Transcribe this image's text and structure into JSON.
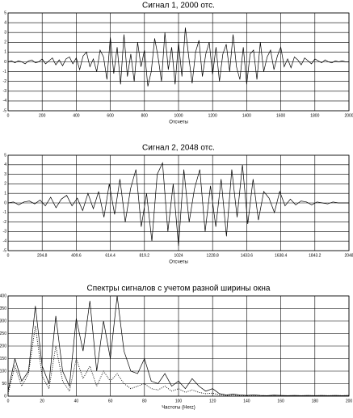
{
  "chart_data": [
    {
      "type": "line",
      "title": "Сигнал 1, 2000 отс.",
      "x_label": "Отсчеты",
      "xlim": [
        0,
        2000
      ],
      "ylim": [
        -5,
        5
      ],
      "xticks": [
        0,
        200,
        400,
        600,
        800,
        1000,
        1200,
        1400,
        1600,
        1800,
        2000
      ],
      "yticks": [
        5,
        4,
        3,
        2,
        1,
        0,
        -1,
        -2,
        -3,
        -4,
        -5
      ],
      "grid": true,
      "x": [
        0,
        20,
        40,
        60,
        80,
        100,
        120,
        140,
        160,
        180,
        200,
        220,
        240,
        260,
        280,
        300,
        320,
        340,
        360,
        380,
        400,
        420,
        440,
        460,
        480,
        500,
        520,
        540,
        560,
        580,
        600,
        620,
        640,
        660,
        680,
        700,
        720,
        740,
        760,
        780,
        800,
        820,
        840,
        860,
        880,
        900,
        920,
        940,
        960,
        980,
        1000,
        1020,
        1040,
        1060,
        1080,
        1100,
        1120,
        1140,
        1160,
        1180,
        1200,
        1220,
        1240,
        1260,
        1280,
        1300,
        1320,
        1340,
        1360,
        1380,
        1400,
        1420,
        1440,
        1460,
        1480,
        1500,
        1520,
        1540,
        1560,
        1580,
        1600,
        1620,
        1640,
        1660,
        1680,
        1700,
        1720,
        1740,
        1760,
        1780,
        1800,
        1820,
        1840,
        1860,
        1880,
        1900,
        1920,
        1940,
        1960,
        1980,
        2000
      ],
      "series": [
        {
          "color": "#000000",
          "line_style": "solid",
          "values": [
            0,
            0.1,
            -0.1,
            0.1,
            0,
            -0.2,
            0.1,
            0.2,
            -0.1,
            0,
            0.3,
            -0.2,
            0.1,
            0.4,
            -0.3,
            0.2,
            -0.4,
            0.3,
            0.5,
            -0.2,
            0.4,
            -0.8,
            0.6,
            1.0,
            -0.5,
            0.3,
            -1.0,
            1.2,
            0.5,
            -1.8,
            2.5,
            -1.2,
            1.5,
            -2.3,
            2.8,
            -1.5,
            0.8,
            -2.0,
            2.0,
            -0.5,
            1.2,
            -2.5,
            -1.0,
            2.4,
            0.5,
            -2.0,
            3.0,
            -0.8,
            1.5,
            -2.3,
            2.0,
            -1.5,
            3.5,
            0.5,
            -2.2,
            1.0,
            2.2,
            -1.5,
            0.8,
            2.0,
            -1.3,
            1.5,
            -2.0,
            0.8,
            1.8,
            -1.0,
            2.8,
            -0.5,
            -1.8,
            1.5,
            -2.3,
            0.8,
            1.2,
            -1.8,
            2.0,
            -1.0,
            0.5,
            1.2,
            -0.8,
            0.6,
            1.5,
            -0.5,
            0.3,
            -0.6,
            0.5,
            0.2,
            -0.3,
            0.4,
            0.1,
            -0.2,
            0.3,
            0.1,
            -0.1,
            0.2,
            0,
            -0.1,
            0.1,
            0,
            0.1,
            0,
            0
          ]
        }
      ]
    },
    {
      "type": "line",
      "title": "Сигнал 2, 2048 отс.",
      "x_label": "Отсчеты",
      "xlim": [
        0,
        2048
      ],
      "ylim": [
        -5,
        5
      ],
      "xticks": [
        0,
        204.8,
        409.6,
        614.4,
        819.2,
        1024,
        1228.8,
        1433.6,
        1638.4,
        1843.2,
        2048
      ],
      "yticks": [
        5,
        4,
        3,
        2,
        1,
        0,
        -1,
        -2,
        -3,
        -4,
        -5
      ],
      "grid": true,
      "x": [
        0,
        32,
        64,
        96,
        128,
        160,
        192,
        224,
        256,
        288,
        320,
        352,
        384,
        416,
        448,
        480,
        512,
        544,
        576,
        608,
        640,
        672,
        704,
        736,
        768,
        800,
        832,
        864,
        896,
        928,
        960,
        992,
        1024,
        1056,
        1088,
        1120,
        1152,
        1184,
        1216,
        1248,
        1280,
        1312,
        1344,
        1376,
        1408,
        1440,
        1472,
        1504,
        1536,
        1568,
        1600,
        1632,
        1664,
        1696,
        1728,
        1760,
        1792,
        1824,
        1856,
        1888,
        1920,
        1952,
        1984,
        2016,
        2048
      ],
      "series": [
        {
          "color": "#000000",
          "line_style": "solid",
          "values": [
            0,
            0.1,
            -0.2,
            0.1,
            0.2,
            -0.1,
            0.3,
            -0.3,
            0.6,
            -0.5,
            0.4,
            0.8,
            -0.3,
            0.5,
            -0.8,
            1.0,
            -0.6,
            1.2,
            -1.5,
            2.0,
            -1.2,
            2.5,
            -2.0,
            1.5,
            3.5,
            -2.5,
            1.0,
            -4.0,
            3.0,
            4.2,
            -3.0,
            2.0,
            -4.5,
            3.5,
            -2.0,
            1.5,
            3.5,
            -3.0,
            1.8,
            -2.5,
            2.5,
            -3.5,
            3.5,
            -1.5,
            4.0,
            -2.2,
            2.5,
            -1.8,
            1.2,
            0.5,
            -1.0,
            1.2,
            -0.3,
            0.4,
            -0.2,
            0.2,
            0.1,
            -0.2,
            0.1,
            0,
            -0.1,
            0.1,
            0,
            0,
            0
          ]
        }
      ]
    },
    {
      "type": "line",
      "title": "Спектры сигналов с учетом разной ширины окна",
      "x_label": "Частоты (Herz)",
      "xlim": [
        0,
        200
      ],
      "ylim": [
        0,
        400
      ],
      "xticks": [
        0,
        20,
        40,
        60,
        80,
        100,
        120,
        140,
        160,
        180,
        200
      ],
      "yticks": [
        400,
        350,
        300,
        250,
        200,
        150,
        100,
        50,
        0
      ],
      "grid": true,
      "x": [
        0,
        4,
        8,
        12,
        16,
        20,
        24,
        28,
        32,
        36,
        40,
        44,
        48,
        52,
        56,
        60,
        64,
        68,
        72,
        76,
        80,
        84,
        88,
        92,
        96,
        100,
        104,
        108,
        112,
        116,
        120,
        124,
        128,
        132,
        136,
        140,
        144,
        148,
        152,
        156,
        160,
        164,
        168,
        172,
        176,
        180,
        184,
        188,
        192,
        196,
        200
      ],
      "series": [
        {
          "color": "#000000",
          "line_style": "solid",
          "values": [
            20,
            150,
            60,
            100,
            360,
            120,
            50,
            320,
            100,
            40,
            310,
            180,
            380,
            100,
            300,
            150,
            400,
            180,
            100,
            90,
            150,
            60,
            50,
            90,
            40,
            60,
            30,
            70,
            40,
            20,
            30,
            10,
            5,
            8,
            5,
            3,
            5,
            3,
            2,
            4,
            3,
            2,
            3,
            2,
            3,
            2,
            3,
            2,
            3,
            2,
            3
          ]
        },
        {
          "color": "#000000",
          "line_style": "dotted",
          "values": [
            10,
            120,
            40,
            90,
            280,
            80,
            30,
            200,
            60,
            20,
            150,
            70,
            120,
            40,
            100,
            60,
            90,
            50,
            30,
            40,
            50,
            30,
            25,
            40,
            20,
            30,
            15,
            25,
            15,
            10,
            12,
            5,
            3,
            4,
            2,
            2,
            2,
            2,
            2,
            2,
            2,
            2,
            2,
            2,
            2,
            2,
            2,
            2,
            2,
            2,
            2
          ]
        }
      ]
    }
  ]
}
